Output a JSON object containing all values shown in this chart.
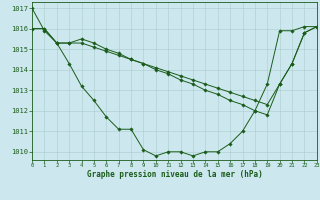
{
  "title": "Graphe pression niveau de la mer (hPa)",
  "background_color": "#cce8ee",
  "grid_color": "#aacccc",
  "line_color": "#1a5c1a",
  "xlim": [
    0,
    23
  ],
  "ylim": [
    1009.6,
    1017.3
  ],
  "yticks": [
    1010,
    1011,
    1012,
    1013,
    1014,
    1015,
    1016,
    1017
  ],
  "xticks": [
    0,
    1,
    2,
    3,
    4,
    5,
    6,
    7,
    8,
    9,
    10,
    11,
    12,
    13,
    14,
    15,
    16,
    17,
    18,
    19,
    20,
    21,
    22,
    23
  ],
  "line1": [
    1017.0,
    1015.9,
    1015.3,
    1014.3,
    1013.2,
    1012.5,
    1011.7,
    1011.1,
    1011.1,
    1010.1,
    1009.8,
    1010.0,
    1010.0,
    1009.8,
    1010.0,
    1010.0,
    1010.4,
    1011.0,
    1012.0,
    1013.3,
    1015.9,
    1015.9,
    1016.1,
    1016.1
  ],
  "line2": [
    1016.0,
    1016.0,
    1015.3,
    1015.3,
    1015.3,
    1015.1,
    1014.9,
    1014.7,
    1014.5,
    1014.3,
    1014.1,
    1013.9,
    1013.7,
    1013.5,
    1013.3,
    1013.1,
    1012.9,
    1012.7,
    1012.5,
    1012.3,
    1013.3,
    1014.3,
    1015.8,
    1016.1
  ],
  "line3": [
    1016.0,
    1016.0,
    1015.3,
    1015.3,
    1015.5,
    1015.3,
    1015.0,
    1014.8,
    1014.5,
    1014.3,
    1014.0,
    1013.8,
    1013.5,
    1013.3,
    1013.0,
    1012.8,
    1012.5,
    1012.3,
    1012.0,
    1011.8,
    1013.3,
    1014.3,
    1015.8,
    1016.1
  ]
}
